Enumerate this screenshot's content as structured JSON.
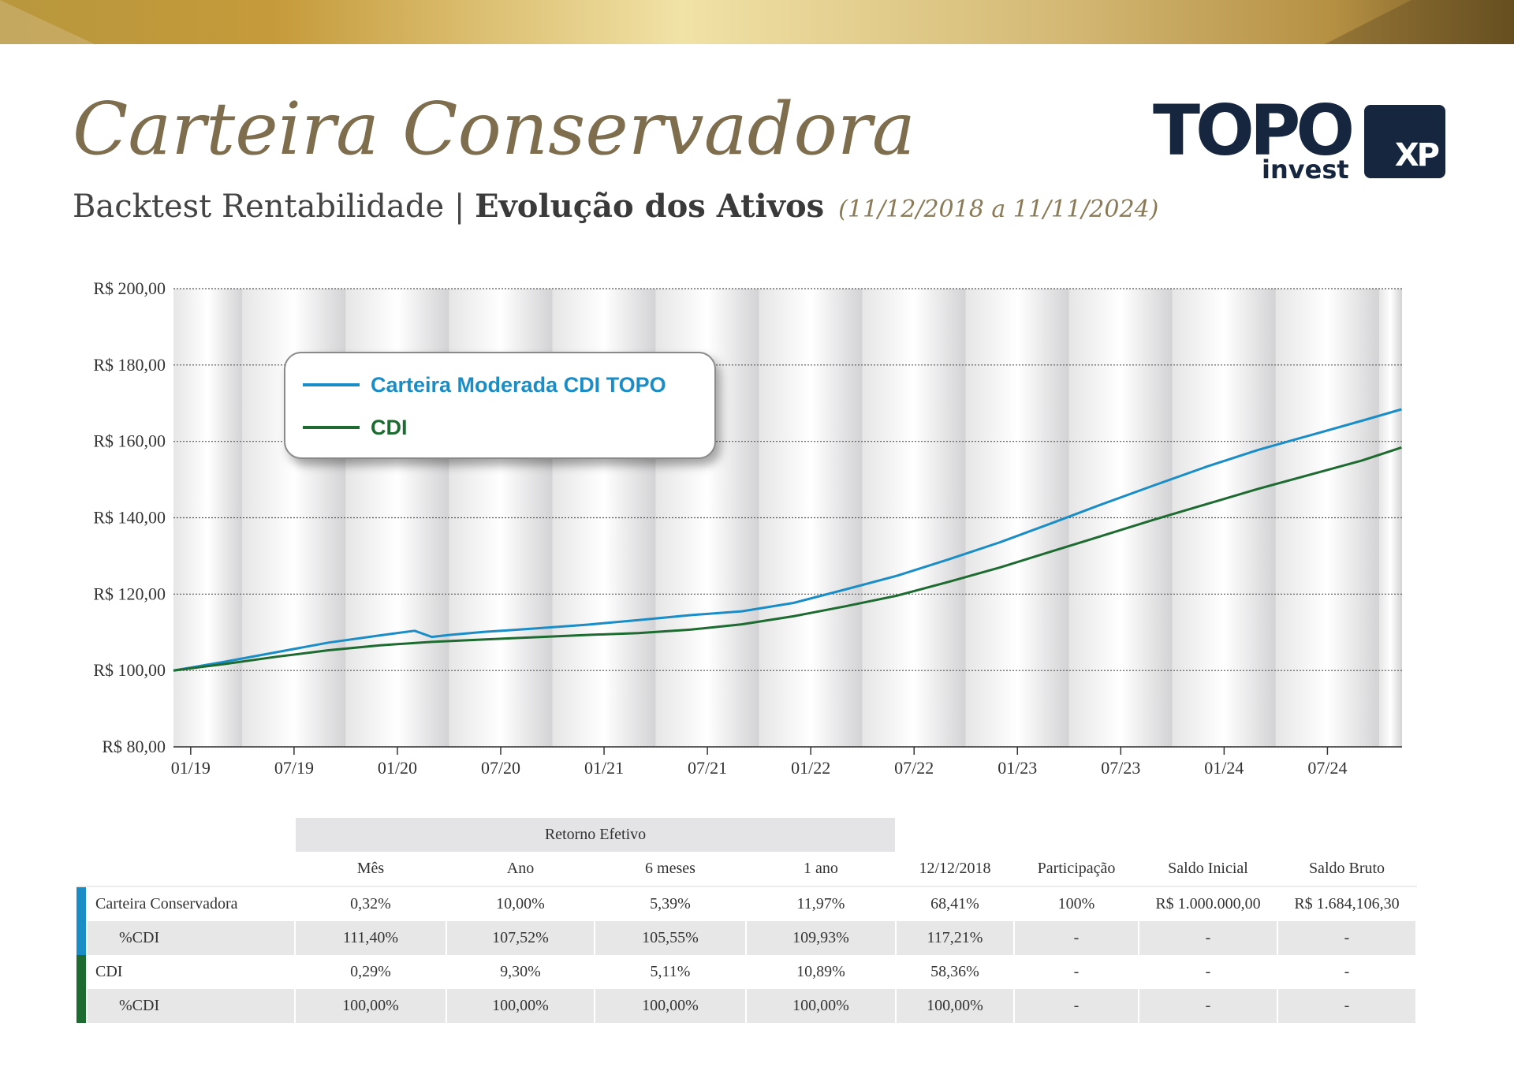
{
  "title": "Carteira Conservadora",
  "subtitle": {
    "left": "Backtest Rentabilidade",
    "sep": "|",
    "bold": "Evolução dos Ativos",
    "period": "(11/12/2018 a 11/11/2024)"
  },
  "logos": {
    "topo_word": "TOPO",
    "topo_sub": "invest",
    "xp": "XP"
  },
  "colors": {
    "portfolio": "#1a8dc6",
    "cdi": "#1d6b30",
    "title": "#7e6e4d",
    "navy": "#16263f"
  },
  "chart_data": {
    "type": "line",
    "ylim": [
      80,
      200
    ],
    "yticks": [
      "R$ 200,00",
      "R$ 180,00",
      "R$ 160,00",
      "R$ 140,00",
      "R$ 120,00",
      "R$ 100,00",
      "R$ 80,00"
    ],
    "ytick_values": [
      200,
      180,
      160,
      140,
      120,
      100,
      80
    ],
    "xticks": [
      "01/19",
      "07/19",
      "01/20",
      "07/20",
      "01/21",
      "07/21",
      "01/22",
      "07/22",
      "01/23",
      "07/23",
      "01/24",
      "07/24"
    ],
    "xtick_months": [
      1,
      7,
      13,
      19,
      25,
      31,
      37,
      43,
      49,
      55,
      61,
      67
    ],
    "x_months_range": [
      0,
      71.33
    ],
    "series": [
      {
        "name": "Carteira Moderada CDI TOPO",
        "color": "#1a8dc6",
        "x": [
          0,
          3,
          6,
          9,
          12,
          14,
          15,
          16,
          18,
          21,
          24,
          27,
          30,
          33,
          36,
          39,
          42,
          45,
          48,
          51,
          54,
          57,
          60,
          63,
          66,
          69,
          71.3
        ],
        "y": [
          100,
          102.3,
          104.8,
          107.3,
          109.2,
          110.4,
          108.8,
          109.3,
          110.1,
          111.0,
          112.0,
          113.2,
          114.5,
          115.5,
          117.7,
          121.2,
          124.8,
          129.1,
          133.6,
          138.6,
          143.7,
          148.6,
          153.4,
          157.8,
          161.6,
          165.4,
          168.4
        ]
      },
      {
        "name": "CDI",
        "color": "#1d6b30",
        "x": [
          0,
          3,
          6,
          9,
          12,
          15,
          18,
          21,
          24,
          27,
          30,
          33,
          36,
          39,
          42,
          45,
          48,
          51,
          54,
          57,
          60,
          63,
          66,
          69,
          71.3
        ],
        "y": [
          100,
          101.7,
          103.6,
          105.3,
          106.6,
          107.5,
          108.1,
          108.7,
          109.3,
          109.8,
          110.7,
          112.1,
          114.2,
          116.8,
          119.6,
          123.2,
          127.0,
          131.2,
          135.4,
          139.6,
          143.6,
          147.6,
          151.3,
          155.0,
          158.4
        ]
      }
    ]
  },
  "table": {
    "group_header": "Retorno Efetivo",
    "columns": [
      "Mês",
      "Ano",
      "6 meses",
      "1 ano",
      "12/12/2018",
      "Participação",
      "Saldo Inicial",
      "Saldo Bruto"
    ],
    "rows": [
      {
        "label": "Carteira Conservadora",
        "values": [
          "0,32%",
          "10,00%",
          "5,39%",
          "11,97%",
          "68,41%",
          "100%",
          "R$ 1.000.000,00",
          "R$ 1.684,106,30"
        ]
      },
      {
        "label": "%CDI",
        "values": [
          "111,40%",
          "107,52%",
          "105,55%",
          "109,93%",
          "117,21%",
          "-",
          "-",
          "-"
        ]
      },
      {
        "label": "CDI",
        "values": [
          "0,29%",
          "9,30%",
          "5,11%",
          "10,89%",
          "58,36%",
          "-",
          "-",
          "-"
        ]
      },
      {
        "label": "%CDI",
        "values": [
          "100,00%",
          "100,00%",
          "100,00%",
          "100,00%",
          "100,00%",
          "-",
          "-",
          "-"
        ]
      }
    ]
  }
}
